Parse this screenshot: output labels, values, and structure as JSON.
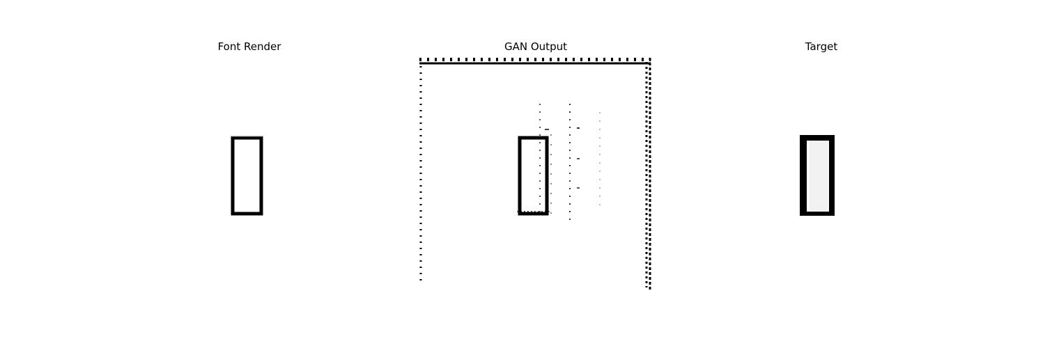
{
  "panels": [
    {
      "title": "Font Render"
    },
    {
      "title": "GAN Output"
    },
    {
      "title": "Target"
    }
  ],
  "colors": {
    "background": "#ffffff",
    "ink": "#000000"
  }
}
